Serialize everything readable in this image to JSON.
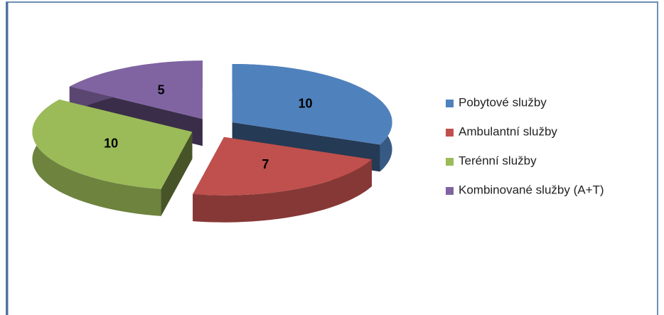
{
  "chart_data": {
    "type": "pie3d",
    "categories": [
      "Pobytové služby",
      "Ambulantní služby",
      "Terénní služby",
      "Kombinované služby (A+T)"
    ],
    "values": [
      10,
      7,
      10,
      5
    ],
    "colors": [
      "#4f81bd",
      "#c0504d",
      "#9bbb59",
      "#8064a2"
    ],
    "legend": "right"
  }
}
